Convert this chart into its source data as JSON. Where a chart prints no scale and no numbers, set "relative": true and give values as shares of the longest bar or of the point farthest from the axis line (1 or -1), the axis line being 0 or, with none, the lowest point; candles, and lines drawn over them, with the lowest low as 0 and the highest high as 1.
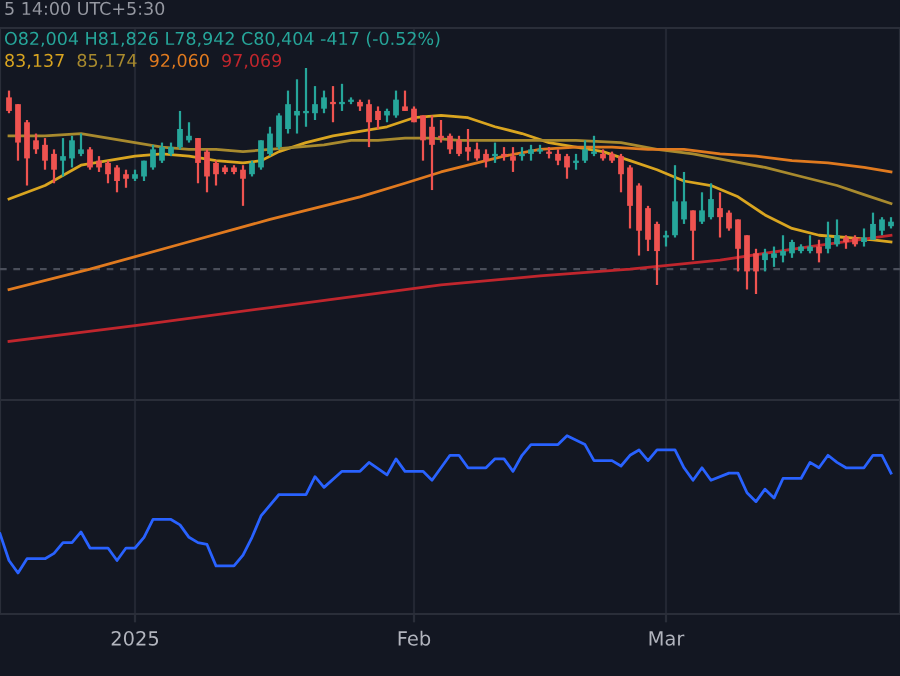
{
  "chart_data": [
    {
      "type": "candlestick",
      "relative": true,
      "tick_labels": false,
      "grid": "x",
      "annotations": [
        "5 14:00 UTC+5:30",
        "O82,004 H81,826 L78,942 C80,404 -417 (-0.52%)"
      ],
      "xlim": [
        "2024-12-17",
        "2025-03-27"
      ],
      "xticks": [
        {
          "value": "2025-01-01",
          "label": null
        },
        {
          "value": "2025-02-01",
          "label": null
        },
        {
          "value": "2025-03-01",
          "label": null
        }
      ],
      "ref_lines": [
        {
          "axis": "y",
          "value": 0.11,
          "label": null,
          "color": "#4a4e5a",
          "line_style": "dashed"
        }
      ],
      "x": [
        "2024-12-18",
        "2024-12-19",
        "2024-12-20",
        "2024-12-21",
        "2024-12-22",
        "2024-12-23",
        "2024-12-24",
        "2024-12-25",
        "2024-12-26",
        "2024-12-27",
        "2024-12-28",
        "2024-12-29",
        "2024-12-30",
        "2024-12-31",
        "2025-01-01",
        "2025-01-02",
        "2025-01-03",
        "2025-01-04",
        "2025-01-05",
        "2025-01-06",
        "2025-01-07",
        "2025-01-08",
        "2025-01-09",
        "2025-01-10",
        "2025-01-11",
        "2025-01-12",
        "2025-01-13",
        "2025-01-14",
        "2025-01-15",
        "2025-01-16",
        "2025-01-17",
        "2025-01-18",
        "2025-01-19",
        "2025-01-20",
        "2025-01-21",
        "2025-01-22",
        "2025-01-23",
        "2025-01-24",
        "2025-01-25",
        "2025-01-26",
        "2025-01-27",
        "2025-01-28",
        "2025-01-29",
        "2025-01-30",
        "2025-01-31",
        "2025-02-01",
        "2025-02-02",
        "2025-02-03",
        "2025-02-04",
        "2025-02-05",
        "2025-02-06",
        "2025-02-07",
        "2025-02-08",
        "2025-02-09",
        "2025-02-10",
        "2025-02-11",
        "2025-02-12",
        "2025-02-13",
        "2025-02-14",
        "2025-02-15",
        "2025-02-16",
        "2025-02-17",
        "2025-02-18",
        "2025-02-19",
        "2025-02-20",
        "2025-02-21",
        "2025-02-22",
        "2025-02-23",
        "2025-02-24",
        "2025-02-25",
        "2025-02-26",
        "2025-02-27",
        "2025-02-28",
        "2025-03-01",
        "2025-03-02",
        "2025-03-03",
        "2025-03-04",
        "2025-03-05",
        "2025-03-06",
        "2025-03-07",
        "2025-03-08",
        "2025-03-09",
        "2025-03-10",
        "2025-03-11",
        "2025-03-12",
        "2025-03-13",
        "2025-03-14",
        "2025-03-15",
        "2025-03-16",
        "2025-03-17",
        "2025-03-18",
        "2025-03-19",
        "2025-03-20",
        "2025-03-21",
        "2025-03-22",
        "2025-03-23",
        "2025-03-24",
        "2025-03-25",
        "2025-03-26"
      ],
      "ohlc": [
        [
          0.87,
          0.9,
          0.8,
          0.81
        ],
        [
          0.84,
          0.84,
          0.59,
          0.67
        ],
        [
          0.76,
          0.77,
          0.48,
          0.6
        ],
        [
          0.68,
          0.71,
          0.62,
          0.64
        ],
        [
          0.66,
          0.69,
          0.55,
          0.59
        ],
        [
          0.62,
          0.64,
          0.49,
          0.55
        ],
        [
          0.59,
          0.69,
          0.52,
          0.61
        ],
        [
          0.6,
          0.7,
          0.56,
          0.68
        ],
        [
          0.62,
          0.71,
          0.61,
          0.64
        ],
        [
          0.64,
          0.65,
          0.55,
          0.56
        ],
        [
          0.59,
          0.61,
          0.54,
          0.56
        ],
        [
          0.58,
          0.59,
          0.49,
          0.53
        ],
        [
          0.56,
          0.57,
          0.45,
          0.5
        ],
        [
          0.53,
          0.55,
          0.47,
          0.51
        ],
        [
          0.51,
          0.55,
          0.5,
          0.53
        ],
        [
          0.52,
          0.59,
          0.5,
          0.59
        ],
        [
          0.56,
          0.66,
          0.55,
          0.64
        ],
        [
          0.59,
          0.67,
          0.58,
          0.65
        ],
        [
          0.62,
          0.67,
          0.61,
          0.65
        ],
        [
          0.65,
          0.81,
          0.64,
          0.73
        ],
        [
          0.68,
          0.76,
          0.67,
          0.7
        ],
        [
          0.69,
          0.69,
          0.49,
          0.58
        ],
        [
          0.63,
          0.64,
          0.45,
          0.52
        ],
        [
          0.58,
          0.59,
          0.48,
          0.53
        ],
        [
          0.56,
          0.57,
          0.53,
          0.54
        ],
        [
          0.56,
          0.57,
          0.53,
          0.54
        ],
        [
          0.55,
          0.57,
          0.39,
          0.51
        ],
        [
          0.53,
          0.59,
          0.52,
          0.58
        ],
        [
          0.56,
          0.68,
          0.55,
          0.68
        ],
        [
          0.62,
          0.74,
          0.61,
          0.71
        ],
        [
          0.65,
          0.8,
          0.64,
          0.79
        ],
        [
          0.73,
          0.9,
          0.71,
          0.84
        ],
        [
          0.79,
          0.95,
          0.71,
          0.81
        ],
        [
          0.8,
          1.0,
          0.74,
          0.81
        ],
        [
          0.8,
          0.92,
          0.77,
          0.84
        ],
        [
          0.82,
          0.9,
          0.8,
          0.87
        ],
        [
          0.85,
          0.92,
          0.76,
          0.84
        ],
        [
          0.84,
          0.93,
          0.81,
          0.85
        ],
        [
          0.85,
          0.87,
          0.84,
          0.86
        ],
        [
          0.85,
          0.86,
          0.81,
          0.83
        ],
        [
          0.84,
          0.86,
          0.65,
          0.76
        ],
        [
          0.81,
          0.83,
          0.73,
          0.77
        ],
        [
          0.79,
          0.82,
          0.76,
          0.81
        ],
        [
          0.79,
          0.9,
          0.78,
          0.86
        ],
        [
          0.83,
          0.9,
          0.81,
          0.81
        ],
        [
          0.82,
          0.83,
          0.76,
          0.76
        ],
        [
          0.79,
          0.79,
          0.59,
          0.68
        ],
        [
          0.74,
          0.79,
          0.46,
          0.66
        ],
        [
          0.7,
          0.77,
          0.67,
          0.69
        ],
        [
          0.7,
          0.71,
          0.62,
          0.64
        ],
        [
          0.68,
          0.7,
          0.61,
          0.62
        ],
        [
          0.65,
          0.73,
          0.59,
          0.63
        ],
        [
          0.64,
          0.67,
          0.59,
          0.6
        ],
        [
          0.62,
          0.64,
          0.56,
          0.59
        ],
        [
          0.61,
          0.67,
          0.58,
          0.62
        ],
        [
          0.62,
          0.65,
          0.59,
          0.61
        ],
        [
          0.61,
          0.65,
          0.54,
          0.59
        ],
        [
          0.61,
          0.65,
          0.59,
          0.62
        ],
        [
          0.62,
          0.66,
          0.59,
          0.64
        ],
        [
          0.63,
          0.66,
          0.62,
          0.64
        ],
        [
          0.63,
          0.65,
          0.6,
          0.62
        ],
        [
          0.62,
          0.64,
          0.57,
          0.59
        ],
        [
          0.61,
          0.62,
          0.51,
          0.56
        ],
        [
          0.58,
          0.62,
          0.55,
          0.59
        ],
        [
          0.59,
          0.68,
          0.58,
          0.64
        ],
        [
          0.62,
          0.7,
          0.61,
          0.63
        ],
        [
          0.62,
          0.64,
          0.59,
          0.6
        ],
        [
          0.62,
          0.63,
          0.58,
          0.59
        ],
        [
          0.61,
          0.62,
          0.45,
          0.53
        ],
        [
          0.56,
          0.57,
          0.29,
          0.39
        ],
        [
          0.48,
          0.49,
          0.17,
          0.28
        ],
        [
          0.38,
          0.39,
          0.19,
          0.24
        ],
        [
          0.31,
          0.32,
          0.04,
          0.19
        ],
        [
          0.25,
          0.28,
          0.21,
          0.26
        ],
        [
          0.26,
          0.57,
          0.25,
          0.41
        ],
        [
          0.33,
          0.54,
          0.31,
          0.41
        ],
        [
          0.37,
          0.37,
          0.15,
          0.28
        ],
        [
          0.32,
          0.45,
          0.31,
          0.37
        ],
        [
          0.34,
          0.49,
          0.33,
          0.42
        ],
        [
          0.38,
          0.45,
          0.25,
          0.34
        ],
        [
          0.36,
          0.37,
          0.28,
          0.29
        ],
        [
          0.33,
          0.33,
          0.1,
          0.2
        ],
        [
          0.26,
          0.26,
          0.02,
          0.1
        ],
        [
          0.18,
          0.2,
          0.0,
          0.1
        ],
        [
          0.15,
          0.2,
          0.1,
          0.18
        ],
        [
          0.16,
          0.21,
          0.12,
          0.18
        ],
        [
          0.17,
          0.26,
          0.14,
          0.19
        ],
        [
          0.18,
          0.24,
          0.16,
          0.23
        ],
        [
          0.19,
          0.22,
          0.18,
          0.21
        ],
        [
          0.19,
          0.26,
          0.18,
          0.21
        ],
        [
          0.21,
          0.24,
          0.14,
          0.18
        ],
        [
          0.2,
          0.32,
          0.18,
          0.25
        ],
        [
          0.22,
          0.33,
          0.21,
          0.26
        ],
        [
          0.25,
          0.26,
          0.2,
          0.23
        ],
        [
          0.25,
          0.26,
          0.21,
          0.22
        ],
        [
          0.23,
          0.29,
          0.21,
          0.25
        ],
        [
          0.24,
          0.36,
          0.24,
          0.31
        ],
        [
          0.28,
          0.34,
          0.26,
          0.33
        ],
        [
          0.3,
          0.34,
          0.29,
          0.32
        ]
      ],
      "colors": [
        "#ef5350",
        "#ef5350",
        "#ef5350",
        "#ef5350",
        "#ef5350",
        "#ef5350",
        "#26a69a",
        "#26a69a",
        "#26a69a",
        "#ef5350",
        "#ef5350",
        "#ef5350",
        "#ef5350",
        "#ef5350",
        "#26a69a",
        "#26a69a",
        "#26a69a",
        "#26a69a",
        "#26a69a",
        "#26a69a",
        "#26a69a",
        "#ef5350",
        "#ef5350",
        "#ef5350",
        "#ef5350",
        "#ef5350",
        "#ef5350",
        "#26a69a",
        "#26a69a",
        "#26a69a",
        "#26a69a",
        "#26a69a",
        "#26a69a",
        "#26a69a",
        "#26a69a",
        "#26a69a",
        "#ef5350",
        "#26a69a",
        "#26a69a",
        "#ef5350",
        "#ef5350",
        "#ef5350",
        "#26a69a",
        "#26a69a",
        "#ef5350",
        "#ef5350",
        "#ef5350",
        "#ef5350",
        "#ef5350",
        "#ef5350",
        "#ef5350",
        "#ef5350",
        "#ef5350",
        "#ef5350",
        "#26a69a",
        "#ef5350",
        "#ef5350",
        "#26a69a",
        "#26a69a",
        "#26a69a",
        "#ef5350",
        "#ef5350",
        "#ef5350",
        "#26a69a",
        "#26a69a",
        "#26a69a",
        "#ef5350",
        "#ef5350",
        "#ef5350",
        "#ef5350",
        "#ef5350",
        "#ef5350",
        "#ef5350",
        "#26a69a",
        "#26a69a",
        "#26a69a",
        "#ef5350",
        "#26a69a",
        "#26a69a",
        "#ef5350",
        "#ef5350",
        "#ef5350",
        "#ef5350",
        "#ef5350",
        "#26a69a",
        "#26a69a",
        "#26a69a",
        "#26a69a",
        "#26a69a",
        "#26a69a",
        "#ef5350",
        "#26a69a",
        "#26a69a",
        "#ef5350",
        "#ef5350",
        "#26a69a",
        "#26a69a",
        "#26a69a",
        "#26a69a"
      ],
      "series": [
        {
          "type": "line",
          "name": "83,137",
          "color": "#d9a520",
          "x": [
            "2024-12-18",
            "2024-12-22",
            "2024-12-26",
            "2024-12-29",
            "2025-01-01",
            "2025-01-04",
            "2025-01-07",
            "2025-01-10",
            "2025-01-13",
            "2025-01-15",
            "2025-01-17",
            "2025-01-20",
            "2025-01-23",
            "2025-01-26",
            "2025-01-29",
            "2025-02-01",
            "2025-02-04",
            "2025-02-07",
            "2025-02-10",
            "2025-02-13",
            "2025-02-16",
            "2025-02-19",
            "2025-02-22",
            "2025-02-25",
            "2025-02-28",
            "2025-03-03",
            "2025-03-06",
            "2025-03-09",
            "2025-03-12",
            "2025-03-15",
            "2025-03-18",
            "2025-03-21",
            "2025-03-24",
            "2025-03-26"
          ],
          "values": [
            0.42,
            0.48,
            0.57,
            0.59,
            0.61,
            0.62,
            0.61,
            0.59,
            0.58,
            0.59,
            0.63,
            0.67,
            0.7,
            0.72,
            0.74,
            0.78,
            0.79,
            0.78,
            0.74,
            0.71,
            0.67,
            0.65,
            0.63,
            0.59,
            0.55,
            0.5,
            0.48,
            0.43,
            0.35,
            0.29,
            0.26,
            0.25,
            0.24,
            0.23
          ]
        },
        {
          "type": "line",
          "name": "85,174",
          "color": "#a88a2e",
          "x": [
            "2024-12-18",
            "2024-12-22",
            "2024-12-26",
            "2024-12-29",
            "2025-01-01",
            "2025-01-04",
            "2025-01-07",
            "2025-01-10",
            "2025-01-13",
            "2025-01-16",
            "2025-01-19",
            "2025-01-22",
            "2025-01-25",
            "2025-01-28",
            "2025-01-31",
            "2025-02-03",
            "2025-02-06",
            "2025-02-10",
            "2025-02-14",
            "2025-02-19",
            "2025-02-24",
            "2025-02-28",
            "2025-03-04",
            "2025-03-08",
            "2025-03-12",
            "2025-03-16",
            "2025-03-20",
            "2025-03-23",
            "2025-03-26"
          ],
          "values": [
            0.7,
            0.7,
            0.71,
            0.69,
            0.67,
            0.65,
            0.64,
            0.64,
            0.63,
            0.64,
            0.65,
            0.66,
            0.68,
            0.68,
            0.69,
            0.69,
            0.68,
            0.68,
            0.68,
            0.68,
            0.67,
            0.64,
            0.62,
            0.59,
            0.56,
            0.52,
            0.48,
            0.44,
            0.4
          ]
        },
        {
          "type": "line",
          "name": "92,060",
          "color": "#e07a1f",
          "x": [
            "2024-12-18",
            "2024-12-27",
            "2025-01-06",
            "2025-01-16",
            "2025-01-26",
            "2025-01-31",
            "2025-02-04",
            "2025-02-07",
            "2025-02-11",
            "2025-02-15",
            "2025-02-19",
            "2025-02-23",
            "2025-02-27",
            "2025-03-03",
            "2025-03-07",
            "2025-03-11",
            "2025-03-15",
            "2025-03-19",
            "2025-03-23",
            "2025-03-26"
          ],
          "values": [
            0.02,
            0.11,
            0.22,
            0.33,
            0.43,
            0.49,
            0.54,
            0.57,
            0.61,
            0.64,
            0.65,
            0.65,
            0.64,
            0.64,
            0.62,
            0.61,
            0.59,
            0.58,
            0.56,
            0.54
          ]
        },
        {
          "type": "line",
          "name": "97,069",
          "color": "#c0262d",
          "x": [
            "2024-12-18",
            "2025-01-01",
            "2025-01-16",
            "2025-02-04",
            "2025-02-15",
            "2025-02-25",
            "2025-03-07",
            "2025-03-17",
            "2025-03-26"
          ],
          "values": [
            -0.21,
            -0.14,
            -0.06,
            0.04,
            0.08,
            0.11,
            0.15,
            0.21,
            0.26
          ]
        }
      ]
    },
    {
      "type": "line",
      "relative": true,
      "tick_labels": "x",
      "grid": "x",
      "xlim": [
        "2024-12-17",
        "2025-03-27"
      ],
      "xticks": [
        {
          "value": "2025-01-01",
          "label": "2025"
        },
        {
          "value": "2025-02-01",
          "label": "Feb"
        },
        {
          "value": "2025-03-01",
          "label": "Mar"
        }
      ],
      "series": [
        {
          "color": "#2962ff",
          "x": [
            "2024-12-17",
            "2024-12-18",
            "2024-12-19",
            "2024-12-20",
            "2024-12-22",
            "2024-12-23",
            "2024-12-24",
            "2024-12-25",
            "2024-12-26",
            "2024-12-27",
            "2024-12-29",
            "2024-12-30",
            "2024-12-31",
            "2025-01-01",
            "2025-01-02",
            "2025-01-03",
            "2025-01-05",
            "2025-01-06",
            "2025-01-07",
            "2025-01-08",
            "2025-01-09",
            "2025-01-10",
            "2025-01-12",
            "2025-01-13",
            "2025-01-14",
            "2025-01-15",
            "2025-01-17",
            "2025-01-20",
            "2025-01-21",
            "2025-01-22",
            "2025-01-24",
            "2025-01-26",
            "2025-01-27",
            "2025-01-29",
            "2025-01-30",
            "2025-01-31",
            "2025-02-02",
            "2025-02-03",
            "2025-02-05",
            "2025-02-06",
            "2025-02-07",
            "2025-02-09",
            "2025-02-10",
            "2025-02-11",
            "2025-02-12",
            "2025-02-13",
            "2025-02-14",
            "2025-02-17",
            "2025-02-18",
            "2025-02-20",
            "2025-02-21",
            "2025-02-23",
            "2025-02-24",
            "2025-02-25",
            "2025-02-26",
            "2025-02-27",
            "2025-02-28",
            "2025-03-02",
            "2025-03-03",
            "2025-03-04",
            "2025-03-05",
            "2025-03-06",
            "2025-03-08",
            "2025-03-09",
            "2025-03-10",
            "2025-03-11",
            "2025-03-12",
            "2025-03-13",
            "2025-03-14",
            "2025-03-16",
            "2025-03-17",
            "2025-03-18",
            "2025-03-19",
            "2025-03-20",
            "2025-03-21",
            "2025-03-23",
            "2025-03-24",
            "2025-03-25",
            "2025-03-26"
          ],
          "values": [
            0.45,
            0.3,
            0.23,
            0.31,
            0.31,
            0.34,
            0.4,
            0.4,
            0.46,
            0.37,
            0.37,
            0.3,
            0.37,
            0.37,
            0.43,
            0.53,
            0.53,
            0.5,
            0.43,
            0.4,
            0.39,
            0.27,
            0.27,
            0.33,
            0.43,
            0.55,
            0.67,
            0.67,
            0.77,
            0.71,
            0.8,
            0.8,
            0.85,
            0.78,
            0.87,
            0.8,
            0.8,
            0.75,
            0.89,
            0.89,
            0.82,
            0.82,
            0.87,
            0.87,
            0.8,
            0.89,
            0.95,
            0.95,
            1,
            0.95,
            0.86,
            0.86,
            0.83,
            0.89,
            0.92,
            0.86,
            0.92,
            0.92,
            0.82,
            0.75,
            0.82,
            0.75,
            0.79,
            0.79,
            0.68,
            0.63,
            0.7,
            0.65,
            0.76,
            0.76,
            0.85,
            0.82,
            0.89,
            0.85,
            0.82,
            0.82,
            0.89,
            0.89,
            0.79
          ]
        }
      ]
    }
  ]
}
